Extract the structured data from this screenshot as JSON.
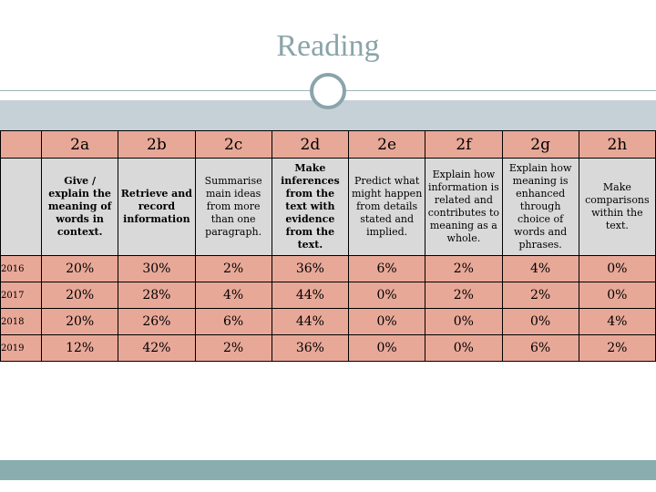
{
  "title": "Reading",
  "table": {
    "headers": [
      "2a",
      "2b",
      "2c",
      "2d",
      "2e",
      "2f",
      "2g",
      "2h"
    ],
    "descriptions": [
      "Give / explain the meaning of words in context.",
      "Retrieve and record information",
      "Summarise main ideas from more than one paragraph.",
      "Make inferences from the text with evidence from the text.",
      "Predict what might happen from details stated and implied.",
      "Explain how information is related and contributes to meaning as a whole.",
      "Explain how meaning is enhanced through choice of words and phrases.",
      "Make comparisons within the text."
    ],
    "rows": [
      {
        "year": "2016",
        "values": [
          "20%",
          "30%",
          "2%",
          "36%",
          "6%",
          "2%",
          "4%",
          "0%"
        ]
      },
      {
        "year": "2017",
        "values": [
          "20%",
          "28%",
          "4%",
          "44%",
          "0%",
          "2%",
          "2%",
          "0%"
        ]
      },
      {
        "year": "2018",
        "values": [
          "20%",
          "26%",
          "6%",
          "44%",
          "0%",
          "0%",
          "0%",
          "4%"
        ]
      },
      {
        "year": "2019",
        "values": [
          "12%",
          "42%",
          "2%",
          "36%",
          "0%",
          "0%",
          "6%",
          "2%"
        ]
      }
    ]
  }
}
